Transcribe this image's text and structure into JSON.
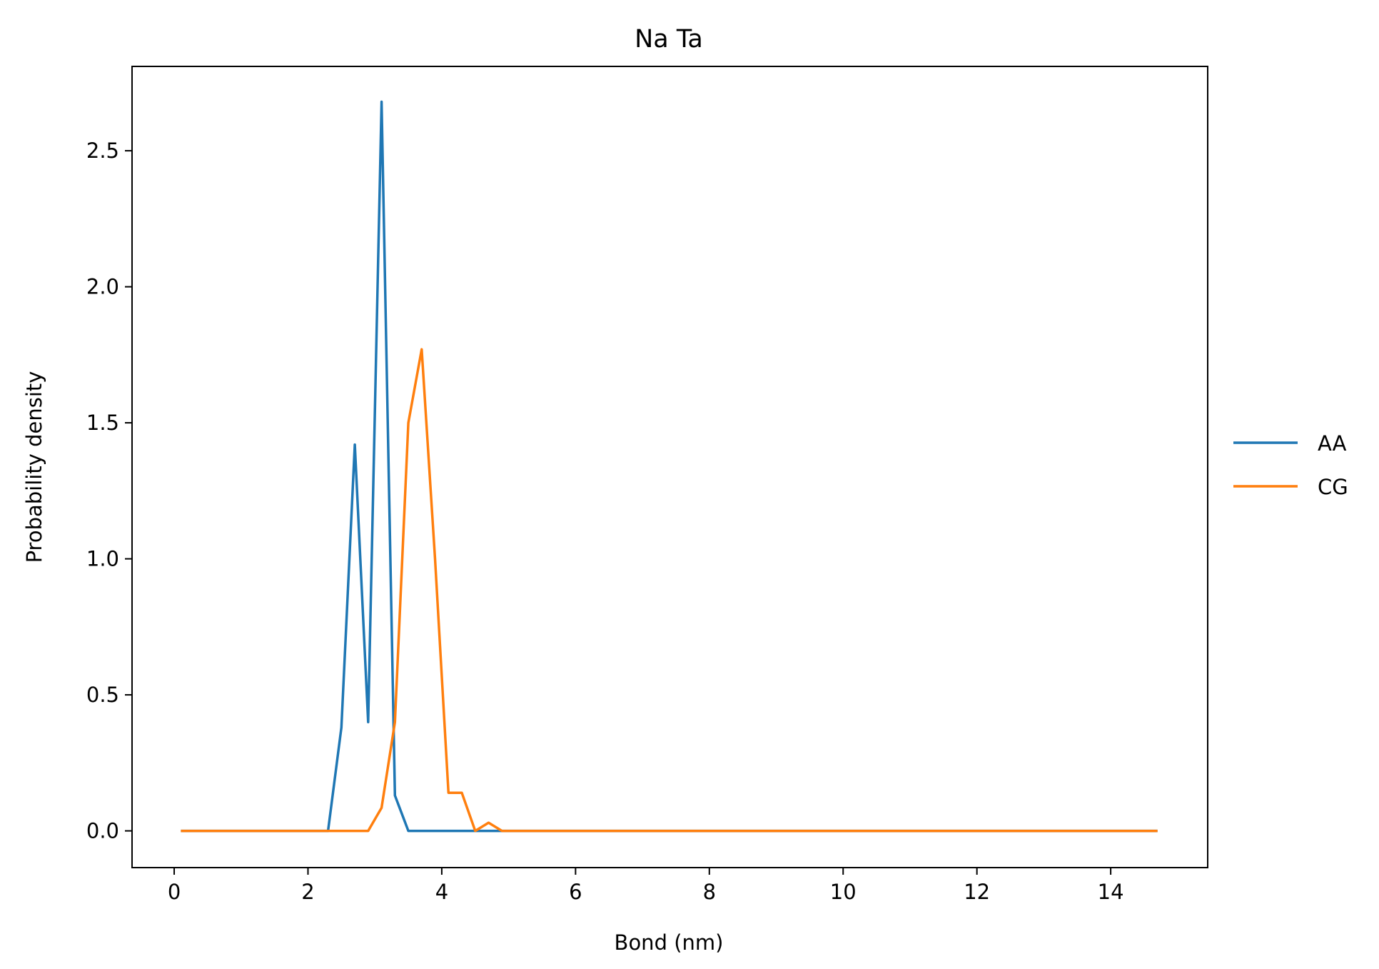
{
  "chart_data": {
    "type": "line",
    "title": "Na Ta",
    "xlabel": "Bond (nm)",
    "ylabel": "Probability density",
    "xlim": [
      -0.63,
      15.45
    ],
    "ylim": [
      -0.135,
      2.81
    ],
    "xticks": [
      0,
      2,
      4,
      6,
      8,
      10,
      12,
      14
    ],
    "xtick_labels": [
      "0",
      "2",
      "4",
      "6",
      "8",
      "10",
      "12",
      "14"
    ],
    "yticks": [
      0.0,
      0.5,
      1.0,
      1.5,
      2.0,
      2.5
    ],
    "ytick_labels": [
      "0.0",
      "0.5",
      "1.0",
      "1.5",
      "2.0",
      "2.5"
    ],
    "grid": false,
    "legend_position": "outside-right",
    "series": [
      {
        "name": "AA",
        "color": "#1f77b4",
        "points": [
          [
            0.1,
            0
          ],
          [
            2.3,
            0
          ],
          [
            2.5,
            0.38
          ],
          [
            2.7,
            1.42
          ],
          [
            2.9,
            0.4
          ],
          [
            3.1,
            2.68
          ],
          [
            3.3,
            0.13
          ],
          [
            3.5,
            0
          ],
          [
            4.9,
            0
          ],
          [
            14.7,
            0
          ]
        ]
      },
      {
        "name": "CG",
        "color": "#ff7f0e",
        "points": [
          [
            0.1,
            0
          ],
          [
            2.9,
            0
          ],
          [
            3.1,
            0.085
          ],
          [
            3.3,
            0.4
          ],
          [
            3.5,
            1.5
          ],
          [
            3.7,
            1.77
          ],
          [
            3.9,
            1.0
          ],
          [
            4.1,
            0.14
          ],
          [
            4.3,
            0.14
          ],
          [
            4.5,
            0.0
          ],
          [
            4.7,
            0.03
          ],
          [
            4.9,
            0
          ],
          [
            14.7,
            0
          ]
        ]
      }
    ]
  }
}
